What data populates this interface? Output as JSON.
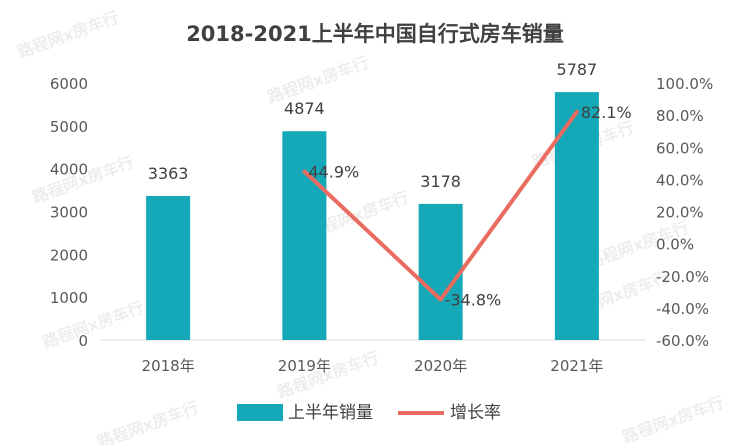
{
  "chart_data": {
    "type": "bar",
    "title": "2018-2021上半年中国自行式房车销量",
    "categories": [
      "2018年",
      "2019年",
      "2020年",
      "2021年"
    ],
    "series": [
      {
        "name": "上半年销量",
        "type": "bar",
        "axis": "left",
        "values": [
          3363,
          4874,
          3178,
          5787
        ],
        "labels": [
          "3363",
          "4874",
          "3178",
          "5787"
        ]
      },
      {
        "name": "增长率",
        "type": "line",
        "axis": "right",
        "values": [
          null,
          44.9,
          -34.8,
          82.1
        ],
        "labels": [
          "",
          "44.9%",
          "-34.8%",
          "82.1%"
        ]
      }
    ],
    "y_left": {
      "min": 0,
      "max": 6000,
      "ticks": [
        "0",
        "1000",
        "2000",
        "3000",
        "4000",
        "5000",
        "6000"
      ]
    },
    "y_right": {
      "min": -60,
      "max": 100,
      "ticks": [
        "-60.0%",
        "-40.0%",
        "-20.0%",
        "0.0%",
        "20.0%",
        "40.0%",
        "60.0%",
        "80.0%",
        "100.0%"
      ]
    },
    "legend_position": "bottom",
    "grid": false,
    "colors": {
      "bar": "#14a8b8",
      "line": "#ea6b5f",
      "text": "#404040",
      "axis": "#d9d9d9"
    },
    "watermark": "路程网x房车行"
  }
}
